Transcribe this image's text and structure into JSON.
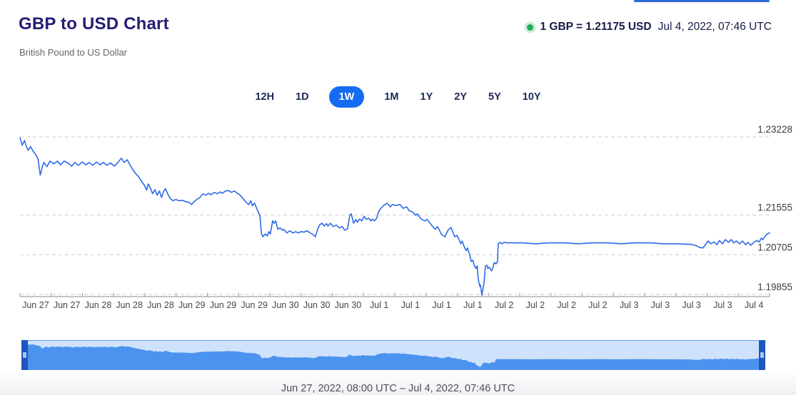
{
  "page": {
    "title": "GBP to USD Chart",
    "subtitle": "British Pound to US Dollar"
  },
  "header": {
    "rate_label": "1 GBP = 1.21175 USD",
    "timestamp": "Jul 4, 2022, 07:46 UTC",
    "status_color": "#1fae55"
  },
  "ranges": {
    "items": [
      "12H",
      "1D",
      "1W",
      "1M",
      "1Y",
      "2Y",
      "5Y",
      "10Y"
    ],
    "active": "1W",
    "active_color": "#156cf2"
  },
  "footer": {
    "range_label": "Jun 27, 2022, 08:00 UTC – Jul 4, 2022, 07:46 UTC"
  },
  "chart_data": {
    "type": "line",
    "title": "GBP to USD exchange rate, 1 week",
    "legend": "none",
    "grid": "dashed horizontal",
    "time_start": "Jun 27, 2022, 08:00 UTC",
    "time_end": "Jul 4, 2022, 07:46 UTC",
    "current_rate": 1.21175,
    "week_high": 1.23228,
    "week_low": 1.19855,
    "line_color": "#2e6be6",
    "x_labels": [
      "Jun 27",
      "Jun 27",
      "Jun 28",
      "Jun 28",
      "Jun 28",
      "Jun 29",
      "Jun 29",
      "Jun 29",
      "Jun 30",
      "Jun 30",
      "Jun 30",
      "Jul 1",
      "Jul 1",
      "Jul 1",
      "Jul 1",
      "Jul 2",
      "Jul 2",
      "Jul 2",
      "Jul 2",
      "Jul 3",
      "Jul 3",
      "Jul 3",
      "Jul 3",
      "Jul 4"
    ],
    "y_axis": {
      "gridlines": [
        1.23228,
        1.21555,
        1.20705,
        1.19855
      ],
      "labels": [
        "1.23228",
        "1.21555",
        "1.20705",
        "1.19855"
      ],
      "ylim": [
        1.1975,
        1.2335
      ]
    },
    "series": [
      [
        0,
        1.2321
      ],
      [
        0.003,
        1.2305
      ],
      [
        0.006,
        1.2315
      ],
      [
        0.009,
        1.23
      ],
      [
        0.011,
        1.2294
      ],
      [
        0.014,
        1.2302
      ],
      [
        0.018,
        1.2291
      ],
      [
        0.021,
        1.2285
      ],
      [
        0.024,
        1.2276
      ],
      [
        0.027,
        1.2241
      ],
      [
        0.03,
        1.226
      ],
      [
        0.032,
        1.2268
      ],
      [
        0.036,
        1.2259
      ],
      [
        0.04,
        1.2271
      ],
      [
        0.045,
        1.2265
      ],
      [
        0.05,
        1.2271
      ],
      [
        0.054,
        1.2263
      ],
      [
        0.059,
        1.2271
      ],
      [
        0.064,
        1.2267
      ],
      [
        0.069,
        1.226
      ],
      [
        0.073,
        1.2268
      ],
      [
        0.078,
        1.2262
      ],
      [
        0.083,
        1.2269
      ],
      [
        0.088,
        1.2263
      ],
      [
        0.092,
        1.2268
      ],
      [
        0.097,
        1.2262
      ],
      [
        0.102,
        1.2269
      ],
      [
        0.107,
        1.2263
      ],
      [
        0.111,
        1.2268
      ],
      [
        0.116,
        1.2262
      ],
      [
        0.121,
        1.2267
      ],
      [
        0.126,
        1.226
      ],
      [
        0.13,
        1.2267
      ],
      [
        0.135,
        1.2277
      ],
      [
        0.139,
        1.2268
      ],
      [
        0.143,
        1.2274
      ],
      [
        0.147,
        1.2262
      ],
      [
        0.15,
        1.2254
      ],
      [
        0.154,
        1.2245
      ],
      [
        0.158,
        1.2238
      ],
      [
        0.162,
        1.2228
      ],
      [
        0.166,
        1.2219
      ],
      [
        0.169,
        1.2209
      ],
      [
        0.171,
        1.2222
      ],
      [
        0.174,
        1.2213
      ],
      [
        0.177,
        1.2201
      ],
      [
        0.18,
        1.221
      ],
      [
        0.183,
        1.2198
      ],
      [
        0.186,
        1.2207
      ],
      [
        0.189,
        1.2193
      ],
      [
        0.191,
        1.2204
      ],
      [
        0.194,
        1.2212
      ],
      [
        0.197,
        1.2201
      ],
      [
        0.2,
        1.2192
      ],
      [
        0.204,
        1.2186
      ],
      [
        0.208,
        1.2189
      ],
      [
        0.212,
        1.2186
      ],
      [
        0.217,
        1.2187
      ],
      [
        0.221,
        1.2184
      ],
      [
        0.225,
        1.2183
      ],
      [
        0.229,
        1.2178
      ],
      [
        0.232,
        1.2184
      ],
      [
        0.236,
        1.2189
      ],
      [
        0.24,
        1.2193
      ],
      [
        0.244,
        1.2201
      ],
      [
        0.248,
        1.2198
      ],
      [
        0.251,
        1.2202
      ],
      [
        0.255,
        1.2199
      ],
      [
        0.259,
        1.2204
      ],
      [
        0.263,
        1.2201
      ],
      [
        0.267,
        1.2205
      ],
      [
        0.27,
        1.2202
      ],
      [
        0.274,
        1.2207
      ],
      [
        0.278,
        1.2208
      ],
      [
        0.282,
        1.2204
      ],
      [
        0.286,
        1.2207
      ],
      [
        0.29,
        1.2202
      ],
      [
        0.293,
        1.2199
      ],
      [
        0.297,
        1.2192
      ],
      [
        0.301,
        1.2184
      ],
      [
        0.305,
        1.2178
      ],
      [
        0.308,
        1.2186
      ],
      [
        0.31,
        1.2175
      ],
      [
        0.313,
        1.2181
      ],
      [
        0.316,
        1.2169
      ],
      [
        0.318,
        1.2161
      ],
      [
        0.32,
        1.2155
      ],
      [
        0.322,
        1.2117
      ],
      [
        0.324,
        1.2109
      ],
      [
        0.327,
        1.2115
      ],
      [
        0.33,
        1.2111
      ],
      [
        0.332,
        1.212
      ],
      [
        0.334,
        1.2115
      ],
      [
        0.337,
        1.2143
      ],
      [
        0.339,
        1.2138
      ],
      [
        0.341,
        1.2143
      ],
      [
        0.344,
        1.2125
      ],
      [
        0.347,
        1.2128
      ],
      [
        0.35,
        1.2123
      ],
      [
        0.352,
        1.2125
      ],
      [
        0.356,
        1.2117
      ],
      [
        0.36,
        1.2122
      ],
      [
        0.364,
        1.2117
      ],
      [
        0.368,
        1.212
      ],
      [
        0.371,
        1.2117
      ],
      [
        0.375,
        1.212
      ],
      [
        0.379,
        1.2119
      ],
      [
        0.383,
        1.2122
      ],
      [
        0.387,
        1.2117
      ],
      [
        0.39,
        1.2115
      ],
      [
        0.394,
        1.2109
      ],
      [
        0.397,
        1.2125
      ],
      [
        0.4,
        1.2135
      ],
      [
        0.403,
        1.2138
      ],
      [
        0.406,
        1.2132
      ],
      [
        0.409,
        1.2137
      ],
      [
        0.411,
        1.2132
      ],
      [
        0.414,
        1.2138
      ],
      [
        0.418,
        1.2131
      ],
      [
        0.422,
        1.2134
      ],
      [
        0.426,
        1.2128
      ],
      [
        0.43,
        1.2131
      ],
      [
        0.433,
        1.2123
      ],
      [
        0.437,
        1.2126
      ],
      [
        0.44,
        1.2155
      ],
      [
        0.442,
        1.2158
      ],
      [
        0.445,
        1.2138
      ],
      [
        0.448,
        1.2146
      ],
      [
        0.45,
        1.214
      ],
      [
        0.453,
        1.2147
      ],
      [
        0.456,
        1.2143
      ],
      [
        0.459,
        1.2153
      ],
      [
        0.462,
        1.2146
      ],
      [
        0.465,
        1.2149
      ],
      [
        0.468,
        1.2143
      ],
      [
        0.47,
        1.2147
      ],
      [
        0.473,
        1.2143
      ],
      [
        0.476,
        1.2149
      ],
      [
        0.478,
        1.2161
      ],
      [
        0.481,
        1.2169
      ],
      [
        0.485,
        1.2176
      ],
      [
        0.49,
        1.2181
      ],
      [
        0.494,
        1.2173
      ],
      [
        0.497,
        1.2178
      ],
      [
        0.502,
        1.2176
      ],
      [
        0.507,
        1.2178
      ],
      [
        0.511,
        1.217
      ],
      [
        0.516,
        1.2173
      ],
      [
        0.519,
        1.2165
      ],
      [
        0.524,
        1.2162
      ],
      [
        0.528,
        1.2155
      ],
      [
        0.53,
        1.2158
      ],
      [
        0.535,
        1.2147
      ],
      [
        0.54,
        1.2143
      ],
      [
        0.543,
        1.2146
      ],
      [
        0.547,
        1.2138
      ],
      [
        0.55,
        1.2132
      ],
      [
        0.554,
        1.2125
      ],
      [
        0.557,
        1.2131
      ],
      [
        0.562,
        1.2115
      ],
      [
        0.567,
        1.2109
      ],
      [
        0.571,
        1.2123
      ],
      [
        0.575,
        1.2129
      ],
      [
        0.578,
        1.2117
      ],
      [
        0.58,
        1.2109
      ],
      [
        0.583,
        1.2112
      ],
      [
        0.586,
        1.2102
      ],
      [
        0.588,
        1.2094
      ],
      [
        0.59,
        1.21
      ],
      [
        0.592,
        1.209
      ],
      [
        0.595,
        1.2079
      ],
      [
        0.597,
        1.2085
      ],
      [
        0.6,
        1.207
      ],
      [
        0.602,
        1.2056
      ],
      [
        0.604,
        1.2059
      ],
      [
        0.606,
        1.2048
      ],
      [
        0.608,
        1.2041
      ],
      [
        0.61,
        1.2047
      ],
      [
        0.6105,
        1.2036
      ],
      [
        0.6114,
        1.2018
      ],
      [
        0.6124,
        1.201
      ],
      [
        0.6133,
        1.2003
      ],
      [
        0.6143,
        1.2006
      ],
      [
        0.6152,
        1.1995
      ],
      [
        0.6162,
        1.1984
      ],
      [
        0.6171,
        1.1993
      ],
      [
        0.6181,
        1.2001
      ],
      [
        0.619,
        1.201
      ],
      [
        0.621,
        1.2047
      ],
      [
        0.623,
        1.2048
      ],
      [
        0.624,
        1.2041
      ],
      [
        0.626,
        1.2044
      ],
      [
        0.629,
        1.2036
      ],
      [
        0.63,
        1.2039
      ],
      [
        0.633,
        1.2054
      ],
      [
        0.635,
        1.2051
      ],
      [
        0.637,
        1.2056
      ],
      [
        0.638,
        1.2094
      ],
      [
        0.64,
        1.2097
      ],
      [
        0.643,
        1.2094
      ],
      [
        0.646,
        1.2097
      ],
      [
        0.65,
        1.2096
      ],
      [
        0.669,
        1.2096
      ],
      [
        0.688,
        1.2094
      ],
      [
        0.707,
        1.2096
      ],
      [
        0.726,
        1.2096
      ],
      [
        0.745,
        1.2094
      ],
      [
        0.764,
        1.2096
      ],
      [
        0.783,
        1.2096
      ],
      [
        0.802,
        1.2094
      ],
      [
        0.821,
        1.2096
      ],
      [
        0.84,
        1.2096
      ],
      [
        0.859,
        1.2094
      ],
      [
        0.878,
        1.2094
      ],
      [
        0.888,
        1.2093
      ],
      [
        0.895,
        1.2093
      ],
      [
        0.902,
        1.209
      ],
      [
        0.907,
        1.2086
      ],
      [
        0.911,
        1.2085
      ],
      [
        0.914,
        1.2091
      ],
      [
        0.918,
        1.21
      ],
      [
        0.922,
        1.2094
      ],
      [
        0.926,
        1.2098
      ],
      [
        0.93,
        1.2092
      ],
      [
        0.933,
        1.2101
      ],
      [
        0.937,
        1.2094
      ],
      [
        0.941,
        1.2103
      ],
      [
        0.945,
        1.2097
      ],
      [
        0.949,
        1.2103
      ],
      [
        0.952,
        1.2096
      ],
      [
        0.956,
        1.21
      ],
      [
        0.96,
        1.2094
      ],
      [
        0.964,
        1.21
      ],
      [
        0.968,
        1.2092
      ],
      [
        0.971,
        1.2097
      ],
      [
        0.975,
        1.2091
      ],
      [
        0.979,
        1.2097
      ],
      [
        0.983,
        1.2101
      ],
      [
        0.986,
        1.2098
      ],
      [
        0.989,
        1.2106
      ],
      [
        0.991,
        1.2103
      ],
      [
        0.994,
        1.211
      ],
      [
        0.997,
        1.2115
      ],
      [
        1,
        1.21175
      ]
    ],
    "navigator": {
      "bg": "#cfe2fc",
      "fill": "#4b93ee",
      "handle": "#1e56c0",
      "border": "#5e99ec"
    }
  }
}
